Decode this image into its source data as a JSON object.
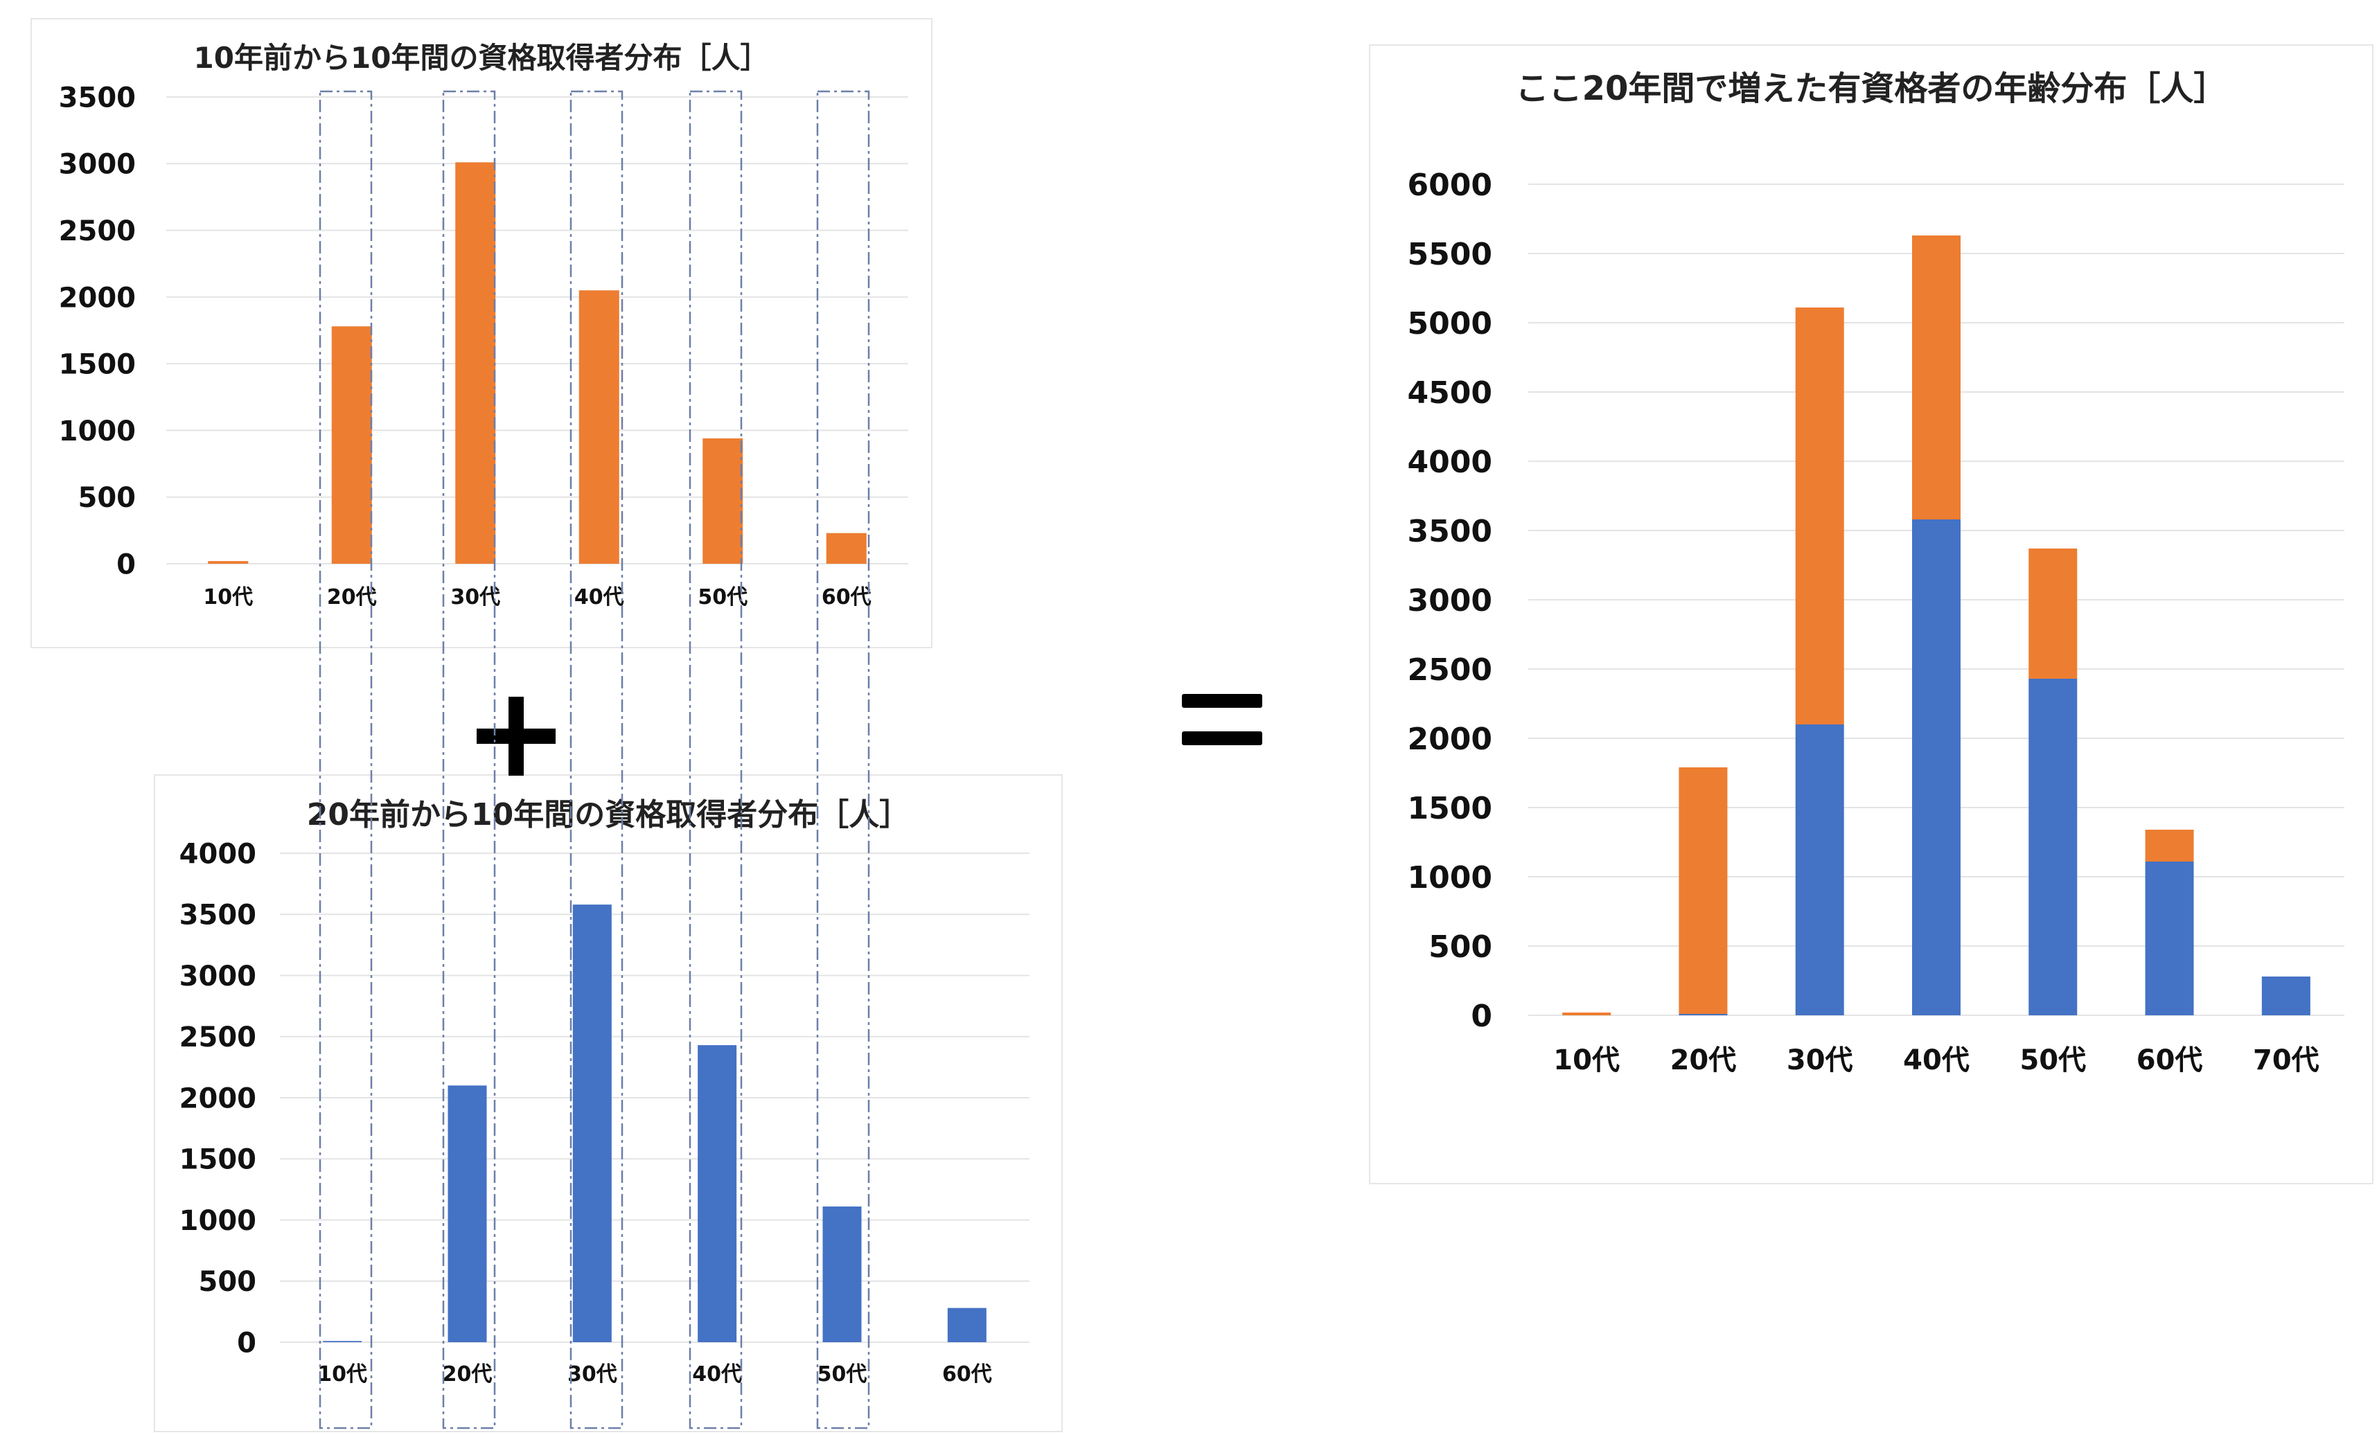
{
  "colors": {
    "orange": "#ED7D31",
    "blue": "#4472C4",
    "gridline": "#e4e4e4",
    "guide": "#6d7fa8"
  },
  "chart_data": [
    {
      "id": "a",
      "type": "bar",
      "title": "10年前から10年間の資格取得者分布［人］",
      "categories": [
        "10代",
        "20代",
        "30代",
        "40代",
        "50代",
        "60代"
      ],
      "series": [
        {
          "color": "#ED7D31",
          "values": [
            20,
            1780,
            3010,
            2050,
            940,
            230
          ]
        }
      ],
      "ylim": [
        0,
        3500
      ],
      "yticks": [
        0,
        500,
        1000,
        1500,
        2000,
        2500,
        3000,
        3500
      ],
      "grid": true
    },
    {
      "id": "b",
      "type": "bar",
      "title": "20年前から10年間の資格取得者分布［人］",
      "categories": [
        "10代",
        "20代",
        "30代",
        "40代",
        "50代",
        "60代"
      ],
      "series": [
        {
          "color": "#4472C4",
          "values": [
            10,
            2100,
            3580,
            2430,
            1110,
            280
          ]
        }
      ],
      "ylim": [
        0,
        4000
      ],
      "yticks": [
        0,
        500,
        1000,
        1500,
        2000,
        2500,
        3000,
        3500,
        4000
      ],
      "grid": true
    },
    {
      "id": "c",
      "type": "bar",
      "stacked": true,
      "title": "ここ20年間で増えた有資格者の年齢分布［人］",
      "categories": [
        "10代",
        "20代",
        "30代",
        "40代",
        "50代",
        "60代",
        "70代"
      ],
      "series": [
        {
          "color": "#4472C4",
          "values": [
            0,
            10,
            2100,
            3580,
            2430,
            1110,
            280
          ]
        },
        {
          "color": "#ED7D31",
          "values": [
            20,
            1780,
            3010,
            2050,
            940,
            230,
            0
          ]
        }
      ],
      "ylim": [
        0,
        6000
      ],
      "yticks": [
        0,
        500,
        1000,
        1500,
        2000,
        2500,
        3000,
        3500,
        4000,
        4500,
        5000,
        5500,
        6000
      ],
      "grid": true
    }
  ]
}
